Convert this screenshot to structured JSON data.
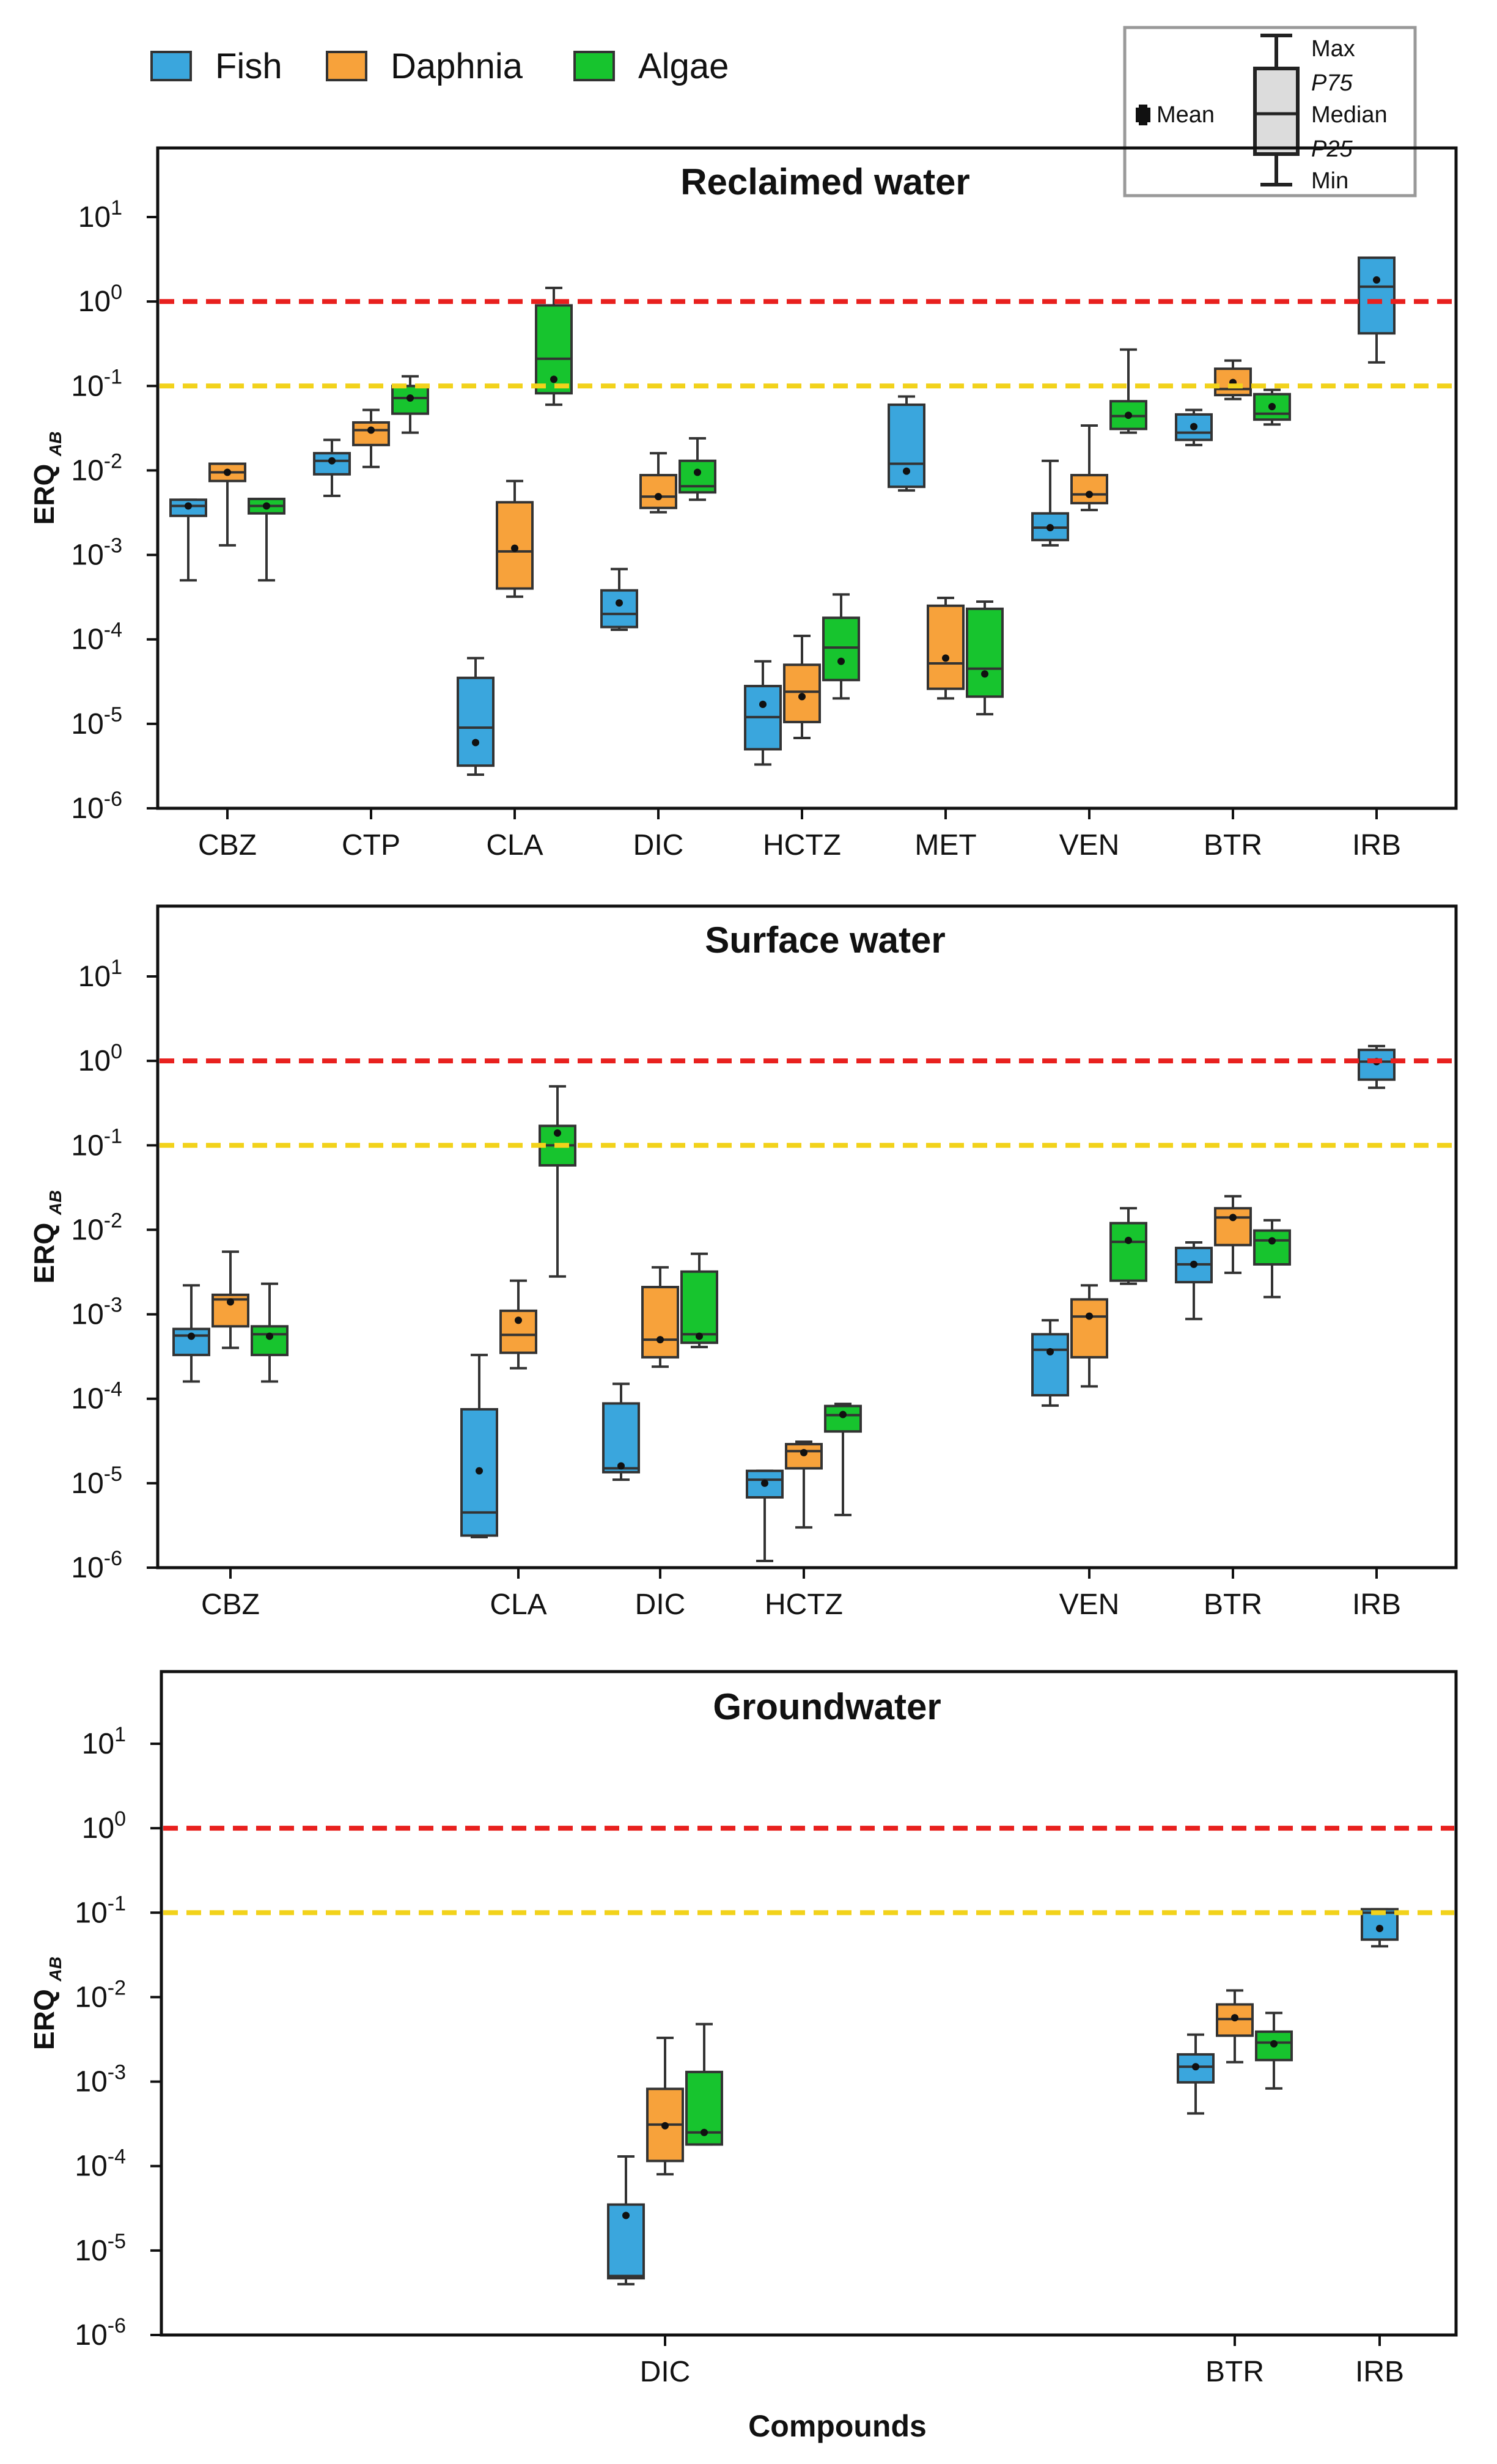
{
  "legend": {
    "entries": [
      {
        "label": "Fish",
        "color": "#3aa6dd"
      },
      {
        "label": "Daphnia",
        "color": "#f7a23b"
      },
      {
        "label": "Algae",
        "color": "#17c42e"
      }
    ]
  },
  "key": {
    "mean": "Mean",
    "max": "Max",
    "p75": "P75",
    "median": "Median",
    "p25": "P25",
    "min": "Min"
  },
  "ylabel": {
    "main": "ERQ",
    "sub": "AB"
  },
  "xlabel": "Compounds",
  "y_ticks": [
    {
      "exp": "1",
      "value": 1
    },
    {
      "exp": "0",
      "value": 0
    },
    {
      "exp": "-1",
      "value": -1
    },
    {
      "exp": "-2",
      "value": -2
    },
    {
      "exp": "-3",
      "value": -3
    },
    {
      "exp": "-4",
      "value": -4
    },
    {
      "exp": "-5",
      "value": -5
    },
    {
      "exp": "-6",
      "value": -6
    }
  ],
  "chart_data": [
    {
      "type": "box",
      "title": "Reclaimed water",
      "yscale": "log",
      "ylim": [
        1e-06,
        60
      ],
      "thresholds": [
        {
          "value": 1,
          "color": "#e8201e"
        },
        {
          "value": 0.1,
          "color": "#f2d21b"
        }
      ],
      "categories": [
        "CBZ",
        "CTP",
        "CLA",
        "DIC",
        "HCTZ",
        "MET",
        "VEN",
        "BTR",
        "IRB"
      ],
      "groups": [
        {
          "category": "CBZ",
          "boxes": [
            {
              "series": "Fish",
              "min": 0.0005,
              "p25": 0.0029,
              "median": 0.0038,
              "p75": 0.0045,
              "max": 0.0045,
              "mean": 0.0038
            },
            {
              "series": "Daphnia",
              "min": 0.0013,
              "p25": 0.0075,
              "median": 0.0095,
              "p75": 0.012,
              "max": 0.012,
              "mean": 0.0095
            },
            {
              "series": "Algae",
              "min": 0.0005,
              "p25": 0.0031,
              "median": 0.0038,
              "p75": 0.0046,
              "max": 0.0046,
              "mean": 0.0038
            }
          ]
        },
        {
          "category": "CTP",
          "boxes": [
            {
              "series": "Fish",
              "min": 0.005,
              "p25": 0.009,
              "median": 0.013,
              "p75": 0.016,
              "max": 0.023,
              "mean": 0.013
            },
            {
              "series": "Daphnia",
              "min": 0.011,
              "p25": 0.02,
              "median": 0.03,
              "p75": 0.037,
              "max": 0.052,
              "mean": 0.03
            },
            {
              "series": "Algae",
              "min": 0.028,
              "p25": 0.047,
              "median": 0.072,
              "p75": 0.1,
              "max": 0.13,
              "mean": 0.072
            }
          ]
        },
        {
          "category": "CLA",
          "boxes": [
            {
              "series": "Fish",
              "min": 2.5e-06,
              "p25": 3.2e-06,
              "median": 9e-06,
              "p75": 3.5e-05,
              "max": 6e-05,
              "mean": 6e-06
            },
            {
              "series": "Daphnia",
              "min": 0.00032,
              "p25": 0.0004,
              "median": 0.0011,
              "p75": 0.0042,
              "max": 0.0075,
              "mean": 0.0012
            },
            {
              "series": "Algae",
              "min": 0.06,
              "p25": 0.082,
              "median": 0.21,
              "p75": 0.9,
              "max": 1.45,
              "mean": 0.12
            }
          ]
        },
        {
          "category": "DIC",
          "boxes": [
            {
              "series": "Fish",
              "min": 0.00013,
              "p25": 0.00014,
              "median": 0.0002,
              "p75": 0.00038,
              "max": 0.00068,
              "mean": 0.00027
            },
            {
              "series": "Daphnia",
              "min": 0.0032,
              "p25": 0.0036,
              "median": 0.0049,
              "p75": 0.0088,
              "max": 0.016,
              "mean": 0.0049
            },
            {
              "series": "Algae",
              "min": 0.0045,
              "p25": 0.0055,
              "median": 0.0065,
              "p75": 0.013,
              "max": 0.024,
              "mean": 0.0095
            }
          ]
        },
        {
          "category": "HCTZ",
          "boxes": [
            {
              "series": "Fish",
              "min": 3.3e-06,
              "p25": 5e-06,
              "median": 1.2e-05,
              "p75": 2.8e-05,
              "max": 5.5e-05,
              "mean": 1.7e-05
            },
            {
              "series": "Daphnia",
              "min": 6.8e-06,
              "p25": 1.05e-05,
              "median": 2.4e-05,
              "p75": 5e-05,
              "max": 0.00011,
              "mean": 2.1e-05
            },
            {
              "series": "Algae",
              "min": 2e-05,
              "p25": 3.3e-05,
              "median": 8e-05,
              "p75": 0.00018,
              "max": 0.00034,
              "mean": 5.5e-05
            }
          ]
        },
        {
          "category": "MET",
          "boxes": [
            {
              "series": "Fish",
              "min": 0.0058,
              "p25": 0.0064,
              "median": 0.012,
              "p75": 0.06,
              "max": 0.075,
              "mean": 0.0098
            },
            {
              "series": "Daphnia",
              "min": 2e-05,
              "p25": 2.6e-05,
              "median": 5.2e-05,
              "p75": 0.00025,
              "max": 0.00031,
              "mean": 6e-05
            },
            {
              "series": "Algae",
              "min": 1.3e-05,
              "p25": 2.1e-05,
              "median": 4.5e-05,
              "p75": 0.00023,
              "max": 0.00028,
              "mean": 3.9e-05
            }
          ]
        },
        {
          "category": "VEN",
          "boxes": [
            {
              "series": "Fish",
              "min": 0.0013,
              "p25": 0.0015,
              "median": 0.0021,
              "p75": 0.0031,
              "max": 0.013,
              "mean": 0.0021
            },
            {
              "series": "Daphnia",
              "min": 0.0034,
              "p25": 0.0041,
              "median": 0.0052,
              "p75": 0.0088,
              "max": 0.034,
              "mean": 0.0052
            },
            {
              "series": "Algae",
              "min": 0.028,
              "p25": 0.031,
              "median": 0.044,
              "p75": 0.066,
              "max": 0.27,
              "mean": 0.045
            }
          ]
        },
        {
          "category": "BTR",
          "boxes": [
            {
              "series": "Fish",
              "min": 0.02,
              "p25": 0.023,
              "median": 0.028,
              "p75": 0.046,
              "max": 0.052,
              "mean": 0.033
            },
            {
              "series": "Daphnia",
              "min": 0.07,
              "p25": 0.078,
              "median": 0.092,
              "p75": 0.16,
              "max": 0.2,
              "mean": 0.11
            },
            {
              "series": "Algae",
              "min": 0.035,
              "p25": 0.04,
              "median": 0.047,
              "p75": 0.08,
              "max": 0.09,
              "mean": 0.057
            }
          ]
        },
        {
          "category": "IRB",
          "boxes": [
            {
              "series": "Fish",
              "min": 0.19,
              "p25": 0.42,
              "median": 1.5,
              "p75": 3.3,
              "max": 3.3,
              "mean": 1.8
            }
          ]
        }
      ]
    },
    {
      "type": "box",
      "title": "Surface water",
      "yscale": "log",
      "ylim": [
        1e-06,
        60
      ],
      "thresholds": [
        {
          "value": 1,
          "color": "#e8201e"
        },
        {
          "value": 0.1,
          "color": "#f2d21b"
        }
      ],
      "categories": [
        "CBZ",
        "CLA",
        "DIC",
        "HCTZ",
        "VEN",
        "BTR",
        "IRB"
      ],
      "groups": [
        {
          "category": "CBZ",
          "boxes": [
            {
              "series": "Fish",
              "min": 0.00016,
              "p25": 0.00033,
              "median": 0.00056,
              "p75": 0.00067,
              "max": 0.0022,
              "mean": 0.00055
            },
            {
              "series": "Daphnia",
              "min": 0.0004,
              "p25": 0.00072,
              "median": 0.0015,
              "p75": 0.0017,
              "max": 0.0055,
              "mean": 0.0014
            },
            {
              "series": "Algae",
              "min": 0.00016,
              "p25": 0.00033,
              "median": 0.00058,
              "p75": 0.00072,
              "max": 0.0023,
              "mean": 0.00055
            }
          ]
        },
        {
          "category": "CLA",
          "boxes": [
            {
              "series": "Fish",
              "min": 2.3e-06,
              "p25": 2.4e-06,
              "median": 4.5e-06,
              "p75": 7.5e-05,
              "max": 0.00033,
              "mean": 1.4e-05
            },
            {
              "series": "Daphnia",
              "min": 0.00023,
              "p25": 0.00035,
              "median": 0.00057,
              "p75": 0.0011,
              "max": 0.0025,
              "mean": 0.00085
            },
            {
              "series": "Algae",
              "min": 0.0028,
              "p25": 0.058,
              "median": 0.1,
              "p75": 0.17,
              "max": 0.5,
              "mean": 0.14
            }
          ]
        },
        {
          "category": "DIC",
          "boxes": [
            {
              "series": "Fish",
              "min": 1.1e-05,
              "p25": 1.35e-05,
              "median": 1.5e-05,
              "p75": 8.8e-05,
              "max": 0.00015,
              "mean": 1.6e-05
            },
            {
              "series": "Daphnia",
              "min": 0.00024,
              "p25": 0.00031,
              "median": 0.0005,
              "p75": 0.0021,
              "max": 0.0036,
              "mean": 0.0005
            },
            {
              "series": "Algae",
              "min": 0.00041,
              "p25": 0.00046,
              "median": 0.00058,
              "p75": 0.0032,
              "max": 0.0052,
              "mean": 0.00055
            }
          ]
        },
        {
          "category": "HCTZ",
          "boxes": [
            {
              "series": "Fish",
              "min": 1.2e-06,
              "p25": 6.8e-06,
              "median": 1.1e-05,
              "p75": 1.4e-05,
              "max": 1.4e-05,
              "mean": 1e-05
            },
            {
              "series": "Daphnia",
              "min": 3e-06,
              "p25": 1.5e-05,
              "median": 2.4e-05,
              "p75": 2.9e-05,
              "max": 3.1e-05,
              "mean": 2.3e-05
            },
            {
              "series": "Algae",
              "min": 4.2e-06,
              "p25": 4.1e-05,
              "median": 6.4e-05,
              "p75": 8.2e-05,
              "max": 8.7e-05,
              "mean": 6.5e-05
            }
          ]
        },
        {
          "category": "VEN",
          "boxes": [
            {
              "series": "Fish",
              "min": 8.3e-05,
              "p25": 0.00011,
              "median": 0.00038,
              "p75": 0.00058,
              "max": 0.00085,
              "mean": 0.00036
            },
            {
              "series": "Daphnia",
              "min": 0.00014,
              "p25": 0.00031,
              "median": 0.00094,
              "p75": 0.0015,
              "max": 0.0022,
              "mean": 0.00095
            },
            {
              "series": "Algae",
              "min": 0.0023,
              "p25": 0.0025,
              "median": 0.0072,
              "p75": 0.012,
              "max": 0.018,
              "mean": 0.0075
            }
          ]
        },
        {
          "category": "BTR",
          "boxes": [
            {
              "series": "Fish",
              "min": 0.00088,
              "p25": 0.0024,
              "median": 0.0039,
              "p75": 0.0061,
              "max": 0.0071,
              "mean": 0.0039
            },
            {
              "series": "Daphnia",
              "min": 0.0031,
              "p25": 0.0066,
              "median": 0.014,
              "p75": 0.018,
              "max": 0.025,
              "mean": 0.014
            },
            {
              "series": "Algae",
              "min": 0.0016,
              "p25": 0.0039,
              "median": 0.0075,
              "p75": 0.0098,
              "max": 0.013,
              "mean": 0.0074
            }
          ]
        },
        {
          "category": "IRB",
          "boxes": [
            {
              "series": "Fish",
              "min": 0.48,
              "p25": 0.6,
              "median": 0.98,
              "p75": 1.35,
              "max": 1.5,
              "mean": 0.98
            }
          ]
        }
      ]
    },
    {
      "type": "box",
      "title": "Groundwater",
      "yscale": "log",
      "ylim": [
        1e-06,
        60
      ],
      "thresholds": [
        {
          "value": 1,
          "color": "#e8201e"
        },
        {
          "value": 0.1,
          "color": "#f2d21b"
        }
      ],
      "categories": [
        "DIC",
        "BTR",
        "IRB"
      ],
      "groups": [
        {
          "category": "DIC",
          "boxes": [
            {
              "series": "Fish",
              "min": 4e-06,
              "p25": 4.7e-06,
              "median": 5e-06,
              "p75": 3.5e-05,
              "max": 0.00013,
              "mean": 2.6e-05
            },
            {
              "series": "Daphnia",
              "min": 8e-05,
              "p25": 0.000115,
              "median": 0.00031,
              "p75": 0.00082,
              "max": 0.0033,
              "mean": 0.0003
            },
            {
              "series": "Algae",
              "min": 0.00018,
              "p25": 0.00018,
              "median": 0.00025,
              "p75": 0.0013,
              "max": 0.0048,
              "mean": 0.00025
            }
          ]
        },
        {
          "category": "BTR",
          "boxes": [
            {
              "series": "Fish",
              "min": 0.00042,
              "p25": 0.00098,
              "median": 0.0015,
              "p75": 0.0021,
              "max": 0.0036,
              "mean": 0.0015
            },
            {
              "series": "Daphnia",
              "min": 0.0017,
              "p25": 0.0035,
              "median": 0.0055,
              "p75": 0.0082,
              "max": 0.012,
              "mean": 0.0057
            },
            {
              "series": "Algae",
              "min": 0.00083,
              "p25": 0.0018,
              "median": 0.0029,
              "p75": 0.0039,
              "max": 0.0065,
              "mean": 0.0028
            }
          ]
        },
        {
          "category": "IRB",
          "boxes": [
            {
              "series": "Fish",
              "min": 0.04,
              "p25": 0.048,
              "median": 0.1,
              "p75": 0.11,
              "max": 0.11,
              "mean": 0.065
            }
          ]
        }
      ]
    }
  ]
}
